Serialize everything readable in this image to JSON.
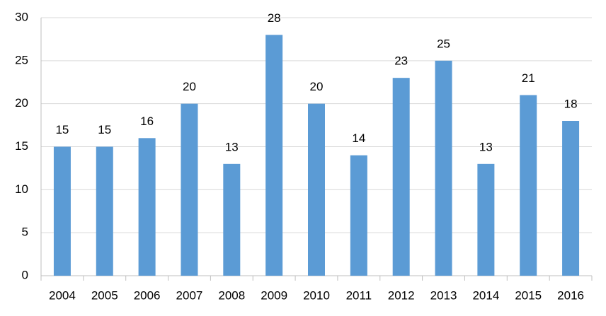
{
  "chart_data": {
    "type": "bar",
    "categories": [
      "2004",
      "2005",
      "2006",
      "2007",
      "2008",
      "2009",
      "2010",
      "2011",
      "2012",
      "2013",
      "2014",
      "2015",
      "2016"
    ],
    "values": [
      15,
      15,
      16,
      20,
      13,
      28,
      20,
      14,
      23,
      25,
      13,
      21,
      18
    ],
    "color": "#5b9bd5",
    "ylim": [
      0,
      30
    ],
    "yticks": [
      0,
      5,
      10,
      15,
      20,
      25,
      30
    ],
    "grid": true,
    "data_labels": true
  }
}
